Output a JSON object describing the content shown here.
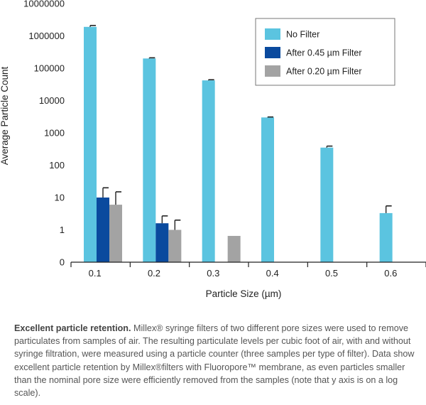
{
  "chart_data": {
    "type": "bar",
    "log_scale": true,
    "xlabel": "Particle Size (µm)",
    "ylabel": "Average Particle Count",
    "categories": [
      "0.1",
      "0.2",
      "0.3",
      "0.4",
      "0.5",
      "0.6"
    ],
    "yticks": [
      "0",
      "1",
      "10",
      "100",
      "1000",
      "10000",
      "100000",
      "1000000",
      "10000000"
    ],
    "ylim": [
      0.1,
      10000000
    ],
    "legend_position": "top-right",
    "series": [
      {
        "name": "No Filter",
        "color": "#5bc4e0",
        "values": [
          1900000,
          200000,
          42000,
          3000,
          350,
          3.3
        ],
        "error": [
          2100000,
          210000,
          44000,
          3100,
          390,
          5.5
        ]
      },
      {
        "name": "After 0.45 µm Filter",
        "color": "#0a4a9e",
        "values": [
          10,
          1.6,
          null,
          null,
          null,
          null
        ],
        "error": [
          20,
          2.7,
          null,
          null,
          null,
          null
        ]
      },
      {
        "name": "After 0.20 µm Filter",
        "color": "#a3a3a3",
        "values": [
          6,
          1.0,
          0.65,
          null,
          null,
          null
        ],
        "error": [
          15,
          2.0,
          null,
          null,
          null,
          null
        ]
      }
    ]
  },
  "caption": {
    "lead": "Excellent particle retention.",
    "body": " Millex® syringe filters of two different pore sizes were used to remove particulates from samples of air. The resulting particulate levels per cubic foot of air, with and without syringe filtration, were measured using a particle counter (three samples per type of filter). Data show excellent particle retention by Millex®filters with Fluoropore™ membrane, as even particles smaller than the nominal pore size were efficiently removed from the samples (note that y axis is on a log scale)."
  }
}
